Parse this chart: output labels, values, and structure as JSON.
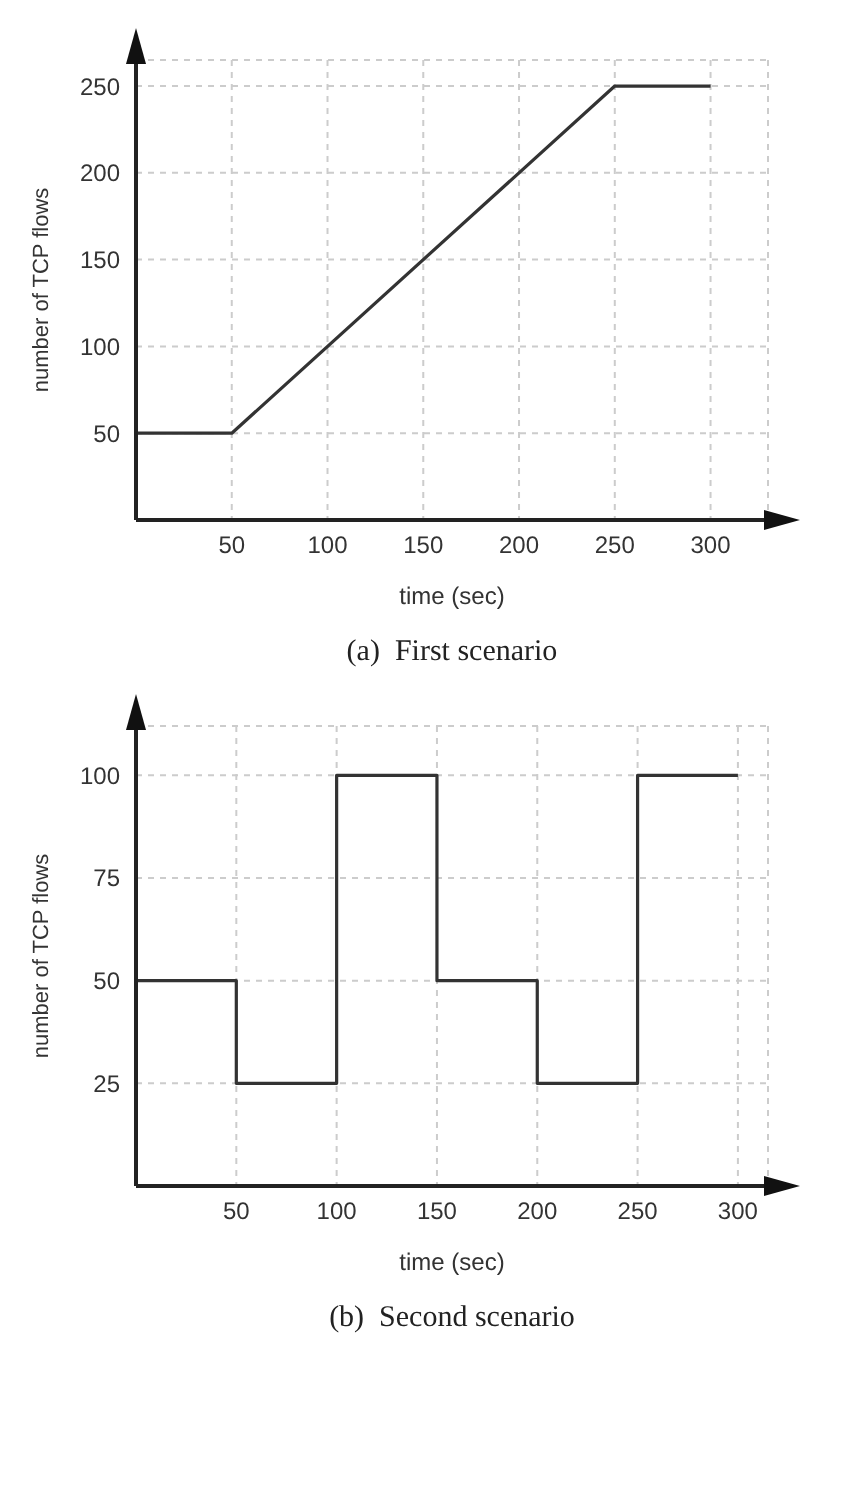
{
  "chart_data": [
    {
      "type": "line",
      "xlabel": "time (sec)",
      "ylabel": "number of TCP flows",
      "annotations": [
        "(a)  First scenario"
      ],
      "x": [
        0,
        50,
        250,
        300
      ],
      "values": [
        50,
        50,
        250,
        250
      ],
      "color": "#333333",
      "xlim": [
        0,
        330
      ],
      "ylim": [
        0,
        265
      ],
      "xticks": [
        50,
        100,
        150,
        200,
        250,
        300
      ],
      "yticks": [
        50,
        100,
        150,
        200,
        250
      ],
      "grid": true,
      "marker": "none",
      "line_style": "solid"
    },
    {
      "type": "step",
      "xlabel": "time (sec)",
      "ylabel": "number of TCP flows",
      "annotations": [
        "(b)  Second scenario"
      ],
      "x": [
        0,
        50,
        100,
        150,
        200,
        250,
        300
      ],
      "values": [
        50,
        25,
        100,
        50,
        25,
        100,
        100
      ],
      "color": "#333333",
      "xlim": [
        0,
        315
      ],
      "ylim": [
        0,
        112
      ],
      "xticks": [
        50,
        100,
        150,
        200,
        250,
        300
      ],
      "yticks": [
        25,
        50,
        75,
        100
      ],
      "grid": true,
      "marker": "none",
      "line_style": "solid"
    }
  ]
}
